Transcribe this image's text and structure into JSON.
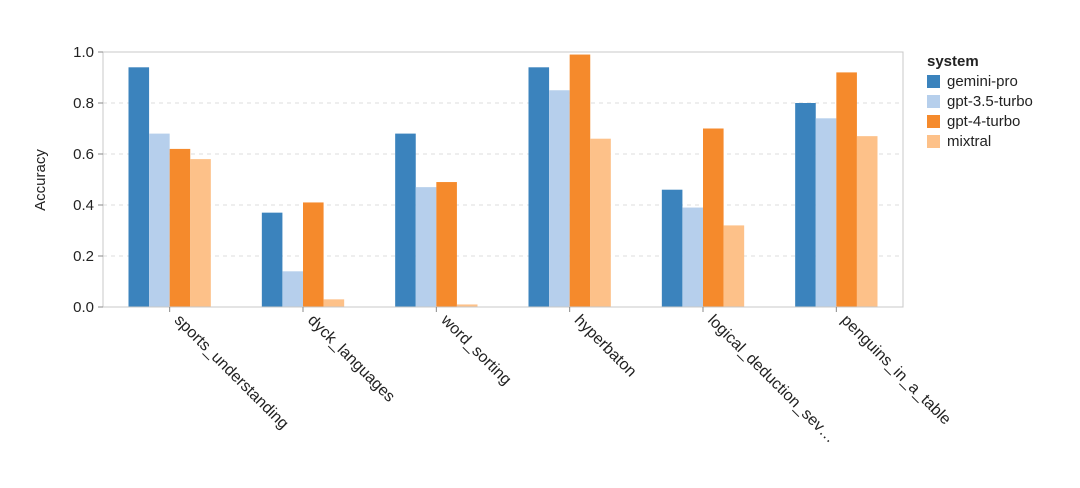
{
  "chart_data": {
    "type": "bar",
    "title": "",
    "xlabel": "",
    "ylabel": "Accuracy",
    "ylim": [
      0,
      1.0
    ],
    "yticks": [
      "0.0",
      "0.2",
      "0.4",
      "0.6",
      "0.8",
      "1.0"
    ],
    "grid": "horizontal-dashed",
    "legend_position": "right",
    "legend_title": "system",
    "categories": [
      "sports_understanding",
      "dyck_languages",
      "word_sorting",
      "hyperbaton",
      "logical_deduction_sev…",
      "penguins_in_a_table"
    ],
    "series": [
      {
        "name": "gemini-pro",
        "color": "#3b83bd",
        "values": [
          0.94,
          0.37,
          0.68,
          0.94,
          0.46,
          0.8
        ]
      },
      {
        "name": "gpt-3.5-turbo",
        "color": "#b6cfec",
        "values": [
          0.68,
          0.14,
          0.47,
          0.85,
          0.39,
          0.74
        ]
      },
      {
        "name": "gpt-4-turbo",
        "color": "#f58a2c",
        "values": [
          0.62,
          0.41,
          0.49,
          0.99,
          0.7,
          0.92
        ]
      },
      {
        "name": "mixtral",
        "color": "#fdc189",
        "values": [
          0.58,
          0.03,
          0.01,
          0.66,
          0.32,
          0.67
        ]
      }
    ]
  }
}
